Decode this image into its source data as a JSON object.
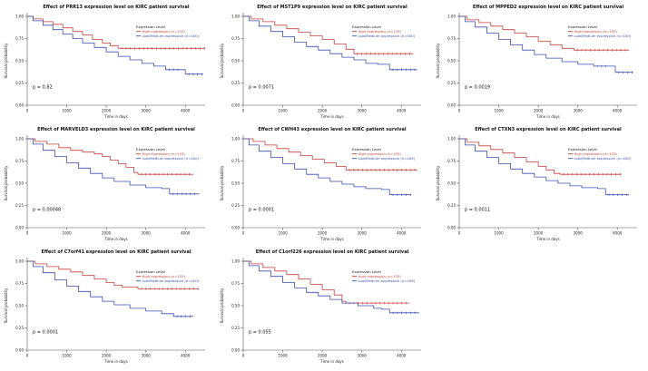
{
  "figure": {
    "description_labels": {
      "x_axis": "Time in days",
      "y_axis": "Survival probability",
      "legend_title": "Expression Level"
    }
  },
  "colors": {
    "high_expression": "#c8403c",
    "low_medium_expression": "#3c50b0",
    "axis": "#555555",
    "title_text": "#111111"
  },
  "axis": {
    "xlabel": "Time in days",
    "ylabel": "Survival probability",
    "xticks": [
      0,
      1000,
      2000,
      3000,
      4000
    ],
    "ytick_labels": [
      "1.00",
      "0.75",
      "0.50",
      "0.25",
      "0.00"
    ],
    "yticks": [
      1.0,
      0.75,
      0.5,
      0.25,
      0.0
    ],
    "xlim": [
      0,
      4500
    ],
    "ylim": [
      0,
      1
    ],
    "grid": false,
    "legend_position": "upper-right"
  },
  "chart_data": [
    {
      "type": "line",
      "title": "Effect of PRR13 expression level on KIRC patient survival",
      "gene": "PRR13",
      "p_value": "p = 0.82",
      "legend_title": "Expression Level",
      "series": [
        {
          "name": "High expression (n=133)",
          "color_key": "high_expression",
          "points": [
            [
              0,
              1
            ],
            [
              150,
              0.97
            ],
            [
              400,
              0.94
            ],
            [
              650,
              0.91
            ],
            [
              900,
              0.87
            ],
            [
              1150,
              0.83
            ],
            [
              1400,
              0.79
            ],
            [
              1650,
              0.74
            ],
            [
              1900,
              0.7
            ],
            [
              2100,
              0.67
            ],
            [
              2300,
              0.64
            ],
            [
              4500,
              0.64
            ]
          ]
        },
        {
          "name": "Low/Medium expression (n=400)",
          "color_key": "low_medium_expression",
          "points": [
            [
              0,
              1
            ],
            [
              150,
              0.95
            ],
            [
              400,
              0.9
            ],
            [
              650,
              0.85
            ],
            [
              900,
              0.8
            ],
            [
              1150,
              0.75
            ],
            [
              1400,
              0.7
            ],
            [
              1700,
              0.65
            ],
            [
              2000,
              0.6
            ],
            [
              2300,
              0.55
            ],
            [
              2600,
              0.51
            ],
            [
              2900,
              0.47
            ],
            [
              3200,
              0.44
            ],
            [
              3500,
              0.4
            ],
            [
              3900,
              0.4
            ],
            [
              4000,
              0.35
            ],
            [
              4450,
              0.35
            ]
          ]
        }
      ]
    },
    {
      "type": "line",
      "title": "Effect of MST1P9 expression level on KIRC patient survival",
      "gene": "MST1P9",
      "p_value": "p = 0.0071",
      "legend_title": "Expression Level",
      "series": [
        {
          "name": "High expression (n=133)",
          "color_key": "high_expression",
          "points": [
            [
              0,
              1
            ],
            [
              200,
              0.97
            ],
            [
              500,
              0.94
            ],
            [
              800,
              0.9
            ],
            [
              1100,
              0.86
            ],
            [
              1400,
              0.82
            ],
            [
              1700,
              0.78
            ],
            [
              2000,
              0.74
            ],
            [
              2300,
              0.69
            ],
            [
              2600,
              0.63
            ],
            [
              2800,
              0.58
            ],
            [
              4300,
              0.58
            ]
          ]
        },
        {
          "name": "Low/Medium expression (n=400)",
          "color_key": "low_medium_expression",
          "points": [
            [
              0,
              1
            ],
            [
              150,
              0.95
            ],
            [
              400,
              0.89
            ],
            [
              700,
              0.83
            ],
            [
              1000,
              0.77
            ],
            [
              1300,
              0.71
            ],
            [
              1600,
              0.66
            ],
            [
              1900,
              0.62
            ],
            [
              2200,
              0.58
            ],
            [
              2500,
              0.54
            ],
            [
              2800,
              0.51
            ],
            [
              3100,
              0.47
            ],
            [
              3400,
              0.46
            ],
            [
              3700,
              0.4
            ],
            [
              4400,
              0.4
            ]
          ]
        }
      ]
    },
    {
      "type": "line",
      "title": "Effect of MPPED2 expression level on KIRC patient survival",
      "gene": "MPPED2",
      "p_value": "p = 0.0019",
      "legend_title": "Expression Level",
      "series": [
        {
          "name": "High expression (n=133)",
          "color_key": "high_expression",
          "points": [
            [
              0,
              1
            ],
            [
              200,
              0.96
            ],
            [
              500,
              0.93
            ],
            [
              800,
              0.89
            ],
            [
              1100,
              0.85
            ],
            [
              1400,
              0.81
            ],
            [
              1700,
              0.77
            ],
            [
              2000,
              0.72
            ],
            [
              2300,
              0.68
            ],
            [
              2600,
              0.64
            ],
            [
              2900,
              0.62
            ],
            [
              4300,
              0.62
            ]
          ]
        },
        {
          "name": "Low/Medium expression (n=400)",
          "color_key": "low_medium_expression",
          "points": [
            [
              0,
              1
            ],
            [
              150,
              0.94
            ],
            [
              400,
              0.88
            ],
            [
              700,
              0.81
            ],
            [
              1000,
              0.74
            ],
            [
              1300,
              0.68
            ],
            [
              1600,
              0.62
            ],
            [
              1900,
              0.57
            ],
            [
              2200,
              0.53
            ],
            [
              2600,
              0.49
            ],
            [
              3000,
              0.46
            ],
            [
              3400,
              0.44
            ],
            [
              3800,
              0.44
            ],
            [
              3950,
              0.37
            ],
            [
              4400,
              0.37
            ]
          ]
        }
      ]
    },
    {
      "type": "line",
      "title": "Effect of MARVELD3 expression level on KIRC patient survival",
      "gene": "MARVELD3",
      "p_value": "p = 0.00048",
      "legend_title": "Expression Level",
      "series": [
        {
          "name": "High expression (n=133)",
          "color_key": "high_expression",
          "points": [
            [
              0,
              1
            ],
            [
              200,
              0.97
            ],
            [
              500,
              0.94
            ],
            [
              800,
              0.9
            ],
            [
              1100,
              0.87
            ],
            [
              1400,
              0.85
            ],
            [
              1700,
              0.83
            ],
            [
              1900,
              0.8
            ],
            [
              2100,
              0.76
            ],
            [
              2300,
              0.72
            ],
            [
              2500,
              0.68
            ],
            [
              2700,
              0.62
            ],
            [
              2800,
              0.6
            ],
            [
              4200,
              0.6
            ]
          ]
        },
        {
          "name": "Low/Medium expression (n=400)",
          "color_key": "low_medium_expression",
          "points": [
            [
              0,
              1
            ],
            [
              150,
              0.94
            ],
            [
              400,
              0.87
            ],
            [
              700,
              0.8
            ],
            [
              1000,
              0.73
            ],
            [
              1300,
              0.67
            ],
            [
              1600,
              0.61
            ],
            [
              1900,
              0.56
            ],
            [
              2200,
              0.52
            ],
            [
              2600,
              0.48
            ],
            [
              3000,
              0.45
            ],
            [
              3400,
              0.44
            ],
            [
              3600,
              0.38
            ],
            [
              4350,
              0.38
            ]
          ]
        }
      ]
    },
    {
      "type": "line",
      "title": "Effect of CWH43 expression level on KIRC patient survival",
      "gene": "CWH43",
      "p_value": "p = 0.0001",
      "legend_title": "Expression Level",
      "series": [
        {
          "name": "High expression (n=133)",
          "color_key": "high_expression",
          "points": [
            [
              0,
              1
            ],
            [
              250,
              0.97
            ],
            [
              550,
              0.93
            ],
            [
              850,
              0.89
            ],
            [
              1150,
              0.85
            ],
            [
              1450,
              0.81
            ],
            [
              1750,
              0.77
            ],
            [
              2050,
              0.73
            ],
            [
              2350,
              0.69
            ],
            [
              2600,
              0.65
            ],
            [
              4400,
              0.65
            ]
          ]
        },
        {
          "name": "Low/Medium expression (n=400)",
          "color_key": "low_medium_expression",
          "points": [
            [
              0,
              1
            ],
            [
              150,
              0.93
            ],
            [
              400,
              0.86
            ],
            [
              700,
              0.79
            ],
            [
              1000,
              0.72
            ],
            [
              1300,
              0.66
            ],
            [
              1600,
              0.6
            ],
            [
              1900,
              0.56
            ],
            [
              2200,
              0.52
            ],
            [
              2500,
              0.49
            ],
            [
              2800,
              0.46
            ],
            [
              3100,
              0.44
            ],
            [
              3500,
              0.43
            ],
            [
              3700,
              0.37
            ],
            [
              4250,
              0.37
            ]
          ]
        }
      ]
    },
    {
      "type": "line",
      "title": "Effect of CTXN3 expression level on KIRC patient survival",
      "gene": "CTXN3",
      "p_value": "p = 0.0011",
      "legend_title": "Expression Level",
      "series": [
        {
          "name": "High expression (n=133)",
          "color_key": "high_expression",
          "points": [
            [
              0,
              1
            ],
            [
              200,
              0.96
            ],
            [
              500,
              0.92
            ],
            [
              800,
              0.88
            ],
            [
              1100,
              0.84
            ],
            [
              1400,
              0.79
            ],
            [
              1700,
              0.74
            ],
            [
              2000,
              0.69
            ],
            [
              2200,
              0.65
            ],
            [
              2400,
              0.61
            ],
            [
              2550,
              0.6
            ],
            [
              4100,
              0.6
            ]
          ]
        },
        {
          "name": "Low/Medium expression (n=400)",
          "color_key": "low_medium_expression",
          "points": [
            [
              0,
              1
            ],
            [
              150,
              0.93
            ],
            [
              400,
              0.86
            ],
            [
              700,
              0.79
            ],
            [
              1000,
              0.72
            ],
            [
              1300,
              0.66
            ],
            [
              1600,
              0.61
            ],
            [
              1900,
              0.57
            ],
            [
              2200,
              0.53
            ],
            [
              2500,
              0.5
            ],
            [
              2800,
              0.47
            ],
            [
              3100,
              0.45
            ],
            [
              3500,
              0.44
            ],
            [
              3700,
              0.37
            ],
            [
              4300,
              0.37
            ]
          ]
        }
      ]
    },
    {
      "type": "line",
      "title": "Effect of C7orf41 expression level on KIRC patient survival",
      "gene": "C7orf41",
      "p_value": "p = 0.0001",
      "legend_title": "Expression Level",
      "series": [
        {
          "name": "High expression (n=133)",
          "color_key": "high_expression",
          "points": [
            [
              0,
              1
            ],
            [
              200,
              0.97
            ],
            [
              500,
              0.94
            ],
            [
              800,
              0.91
            ],
            [
              1100,
              0.88
            ],
            [
              1400,
              0.84
            ],
            [
              1700,
              0.8
            ],
            [
              2000,
              0.76
            ],
            [
              2200,
              0.73
            ],
            [
              2400,
              0.71
            ],
            [
              2800,
              0.69
            ],
            [
              4350,
              0.69
            ]
          ]
        },
        {
          "name": "Low/Medium expression (n=400)",
          "color_key": "low_medium_expression",
          "points": [
            [
              0,
              1
            ],
            [
              150,
              0.94
            ],
            [
              400,
              0.87
            ],
            [
              700,
              0.79
            ],
            [
              1000,
              0.72
            ],
            [
              1300,
              0.66
            ],
            [
              1600,
              0.6
            ],
            [
              1900,
              0.55
            ],
            [
              2200,
              0.51
            ],
            [
              2600,
              0.47
            ],
            [
              3000,
              0.44
            ],
            [
              3400,
              0.41
            ],
            [
              3700,
              0.38
            ],
            [
              4200,
              0.38
            ]
          ]
        }
      ]
    },
    {
      "type": "line",
      "title": "Effect of C1orf226 expression level on KIRC patient survival",
      "gene": "C1orf226",
      "p_value": "p = 0.055",
      "legend_title": "Expression Level",
      "series": [
        {
          "name": "High expression (n=133)",
          "color_key": "high_expression",
          "points": [
            [
              0,
              1
            ],
            [
              200,
              0.97
            ],
            [
              500,
              0.93
            ],
            [
              800,
              0.89
            ],
            [
              1100,
              0.85
            ],
            [
              1400,
              0.8
            ],
            [
              1700,
              0.74
            ],
            [
              2000,
              0.68
            ],
            [
              2300,
              0.62
            ],
            [
              2500,
              0.55
            ],
            [
              2600,
              0.53
            ],
            [
              4200,
              0.53
            ]
          ]
        },
        {
          "name": "Low/Medium expression (n=400)",
          "color_key": "low_medium_expression",
          "points": [
            [
              0,
              1
            ],
            [
              150,
              0.95
            ],
            [
              400,
              0.89
            ],
            [
              700,
              0.83
            ],
            [
              1000,
              0.76
            ],
            [
              1300,
              0.7
            ],
            [
              1600,
              0.65
            ],
            [
              1900,
              0.61
            ],
            [
              2200,
              0.57
            ],
            [
              2500,
              0.53
            ],
            [
              2900,
              0.5
            ],
            [
              3300,
              0.47
            ],
            [
              3500,
              0.46
            ],
            [
              3700,
              0.42
            ],
            [
              4450,
              0.42
            ]
          ]
        }
      ]
    }
  ]
}
